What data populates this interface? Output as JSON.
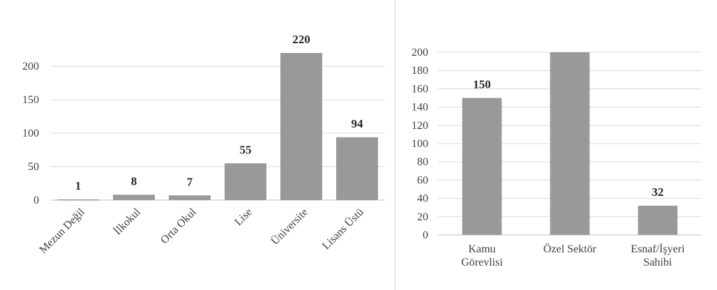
{
  "colors": {
    "bar": "#999999",
    "grid": "#d9d9d9",
    "axis": "#bfbfbf",
    "text": "#404040"
  },
  "chart_data": [
    {
      "type": "bar",
      "categories": [
        "Mezun Değil",
        "İlkokul",
        "Orta Okul",
        "Lise",
        "Üniversite",
        "Lisans Üstü"
      ],
      "values": [
        1,
        8,
        7,
        55,
        220,
        94
      ],
      "data_labels": [
        "1",
        "8",
        "7",
        "55",
        "220",
        "94"
      ],
      "title": "",
      "xlabel": "",
      "ylabel": "",
      "ylim": [
        0,
        220
      ],
      "yticks": [
        0,
        50,
        100,
        150,
        200
      ],
      "grid": true,
      "x_label_rotation": "diagonal"
    },
    {
      "type": "bar",
      "categories": [
        [
          "Kamu",
          "Görevlisi"
        ],
        [
          "Özel Sektör"
        ],
        [
          "Esnaf/İşyeri",
          "Sahibi"
        ]
      ],
      "values": [
        150,
        200,
        32
      ],
      "data_labels": [
        "150",
        "",
        "32"
      ],
      "title": "",
      "xlabel": "",
      "ylabel": "",
      "ylim": [
        0,
        200
      ],
      "yticks": [
        0,
        20,
        40,
        60,
        80,
        100,
        120,
        140,
        160,
        180,
        200
      ],
      "grid": true
    }
  ]
}
